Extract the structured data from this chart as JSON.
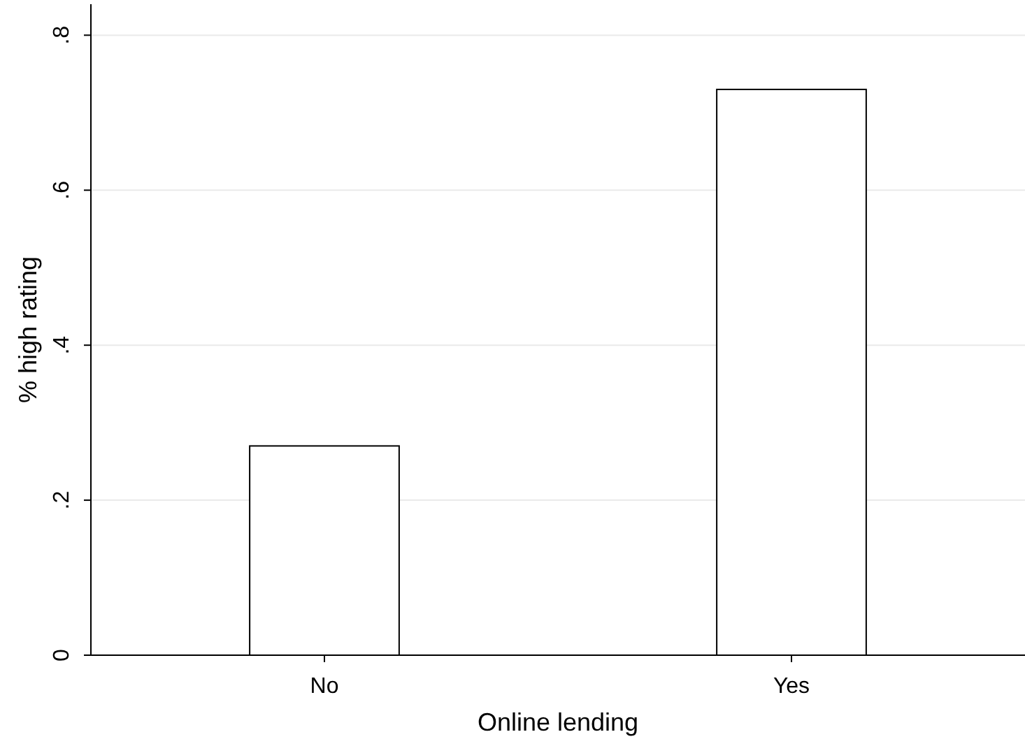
{
  "chart_data": {
    "type": "bar",
    "xlabel": "Online lending",
    "ylabel": "% high rating",
    "categories": [
      "No",
      "Yes"
    ],
    "values": [
      0.27,
      0.73
    ],
    "color": "#ffffff",
    "ylim": [
      0,
      0.84
    ],
    "yticks": [
      {
        "value": 0,
        "label": "0"
      },
      {
        "value": 0.2,
        "label": ".2"
      },
      {
        "value": 0.4,
        "label": ".4"
      },
      {
        "value": 0.6,
        "label": ".6"
      },
      {
        "value": 0.8,
        "label": ".8"
      }
    ],
    "grid": "y"
  }
}
